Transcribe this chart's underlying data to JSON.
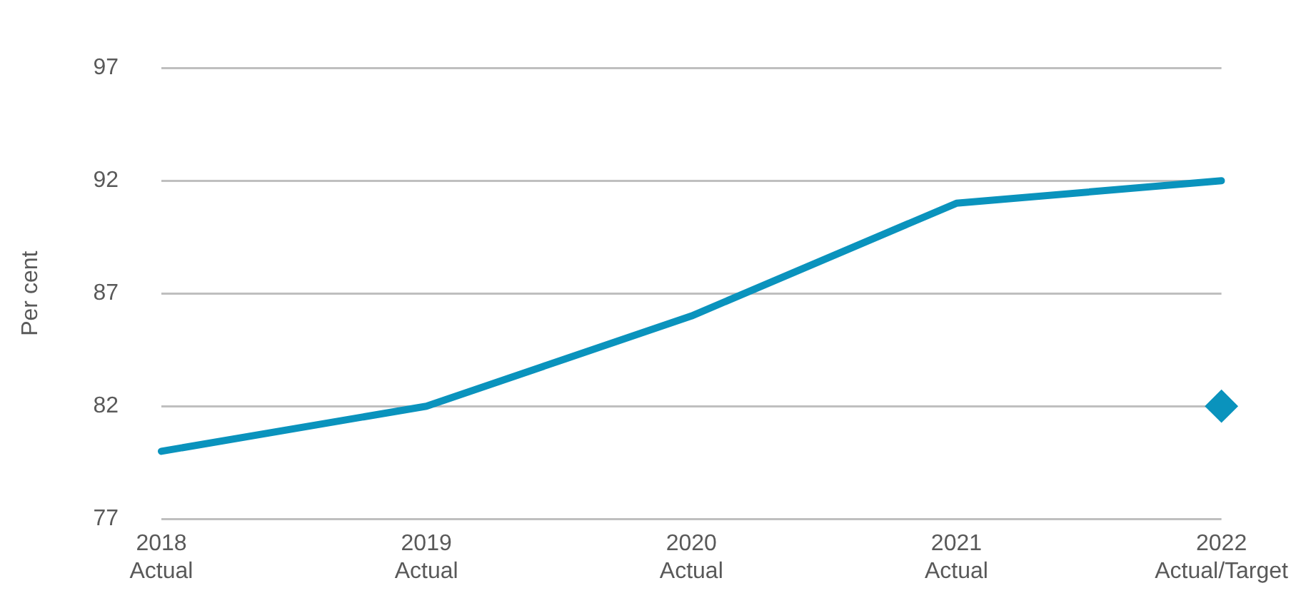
{
  "chart_data": {
    "type": "line",
    "ylabel": "Per cent",
    "categories": [
      "2018\nActual",
      "2019\nActual",
      "2020\nActual",
      "2021\nActual",
      "2022\nActual/Target"
    ],
    "series": [
      {
        "color": "#0a93bd",
        "values": [
          80,
          82,
          86,
          91,
          92
        ],
        "marker": "none"
      },
      {
        "type": "scatter",
        "color": "#0a93bd",
        "x": [
          "2022\nActual/Target"
        ],
        "values": [
          82
        ],
        "marker": "diamond"
      }
    ],
    "ylim": [
      77,
      97
    ],
    "yticks": [
      77,
      82,
      87,
      92,
      97
    ],
    "grid": "y",
    "legend": false
  }
}
